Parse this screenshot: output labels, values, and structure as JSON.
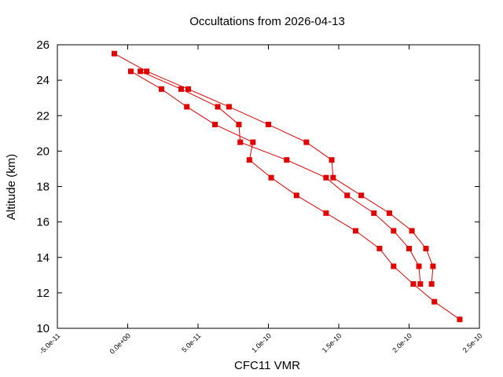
{
  "chart_data": {
    "type": "line",
    "title": "Occultations from 2026-04-13",
    "x_label": "CFC11 VMR",
    "y_label": "Altitude (km)",
    "xlim": [
      -5e-11,
      2.5e-10
    ],
    "xticks": [
      {
        "value": -5e-11,
        "label": "-5.0e-11"
      },
      {
        "value": 0,
        "label": "0.0e+00"
      },
      {
        "value": 5e-11,
        "label": "5.0e-11"
      },
      {
        "value": 1e-10,
        "label": "1.0e-10"
      },
      {
        "value": 1.5e-10,
        "label": "1.5e-10"
      },
      {
        "value": 2e-10,
        "label": "2.0e-10"
      },
      {
        "value": 2.5e-10,
        "label": "2.5e-10"
      }
    ],
    "ylim": [
      10,
      26
    ],
    "yticks": [
      10,
      12,
      14,
      16,
      18,
      20,
      22,
      24,
      26
    ],
    "grid": false,
    "series": [
      {
        "color": "#e00000",
        "x": [
          -9.5e-12,
          1.35e-11,
          4.3e-11,
          7.2e-11,
          1e-10,
          1.27e-10,
          1.45e-10,
          1.46e-10,
          1.66e-10,
          1.86e-10,
          2.02e-10,
          2.12e-10,
          2.17e-10,
          2.16e-10
        ],
        "y": [
          25.5,
          24.5,
          23.5,
          22.5,
          21.5,
          20.5,
          19.5,
          18.5,
          17.5,
          16.5,
          15.5,
          14.5,
          13.5,
          12.5
        ]
      },
      {
        "color": "#e00000",
        "x": [
          9e-12,
          3.8e-11,
          6.4e-11,
          7.9e-11,
          8e-11,
          1.13e-10,
          1.41e-10,
          1.56e-10,
          1.75e-10,
          1.89e-10,
          2e-10,
          2.07e-10,
          2.08e-10
        ],
        "y": [
          24.5,
          23.5,
          22.5,
          21.5,
          20.5,
          19.5,
          18.5,
          17.5,
          16.5,
          15.5,
          14.5,
          13.5,
          12.5
        ]
      },
      {
        "color": "#e00000",
        "x": [
          2.2e-12,
          2.4e-11,
          4.2e-11,
          6.2e-11,
          8.9e-11,
          8.65e-11,
          1.02e-10,
          1.2e-10,
          1.41e-10,
          1.62e-10,
          1.79e-10,
          1.89e-10,
          2.03e-10,
          2.18e-10,
          2.36e-10
        ],
        "y": [
          24.5,
          23.5,
          22.5,
          21.5,
          20.5,
          19.5,
          18.5,
          17.5,
          16.5,
          15.5,
          14.5,
          13.5,
          12.5,
          11.5,
          10.5
        ]
      }
    ]
  }
}
